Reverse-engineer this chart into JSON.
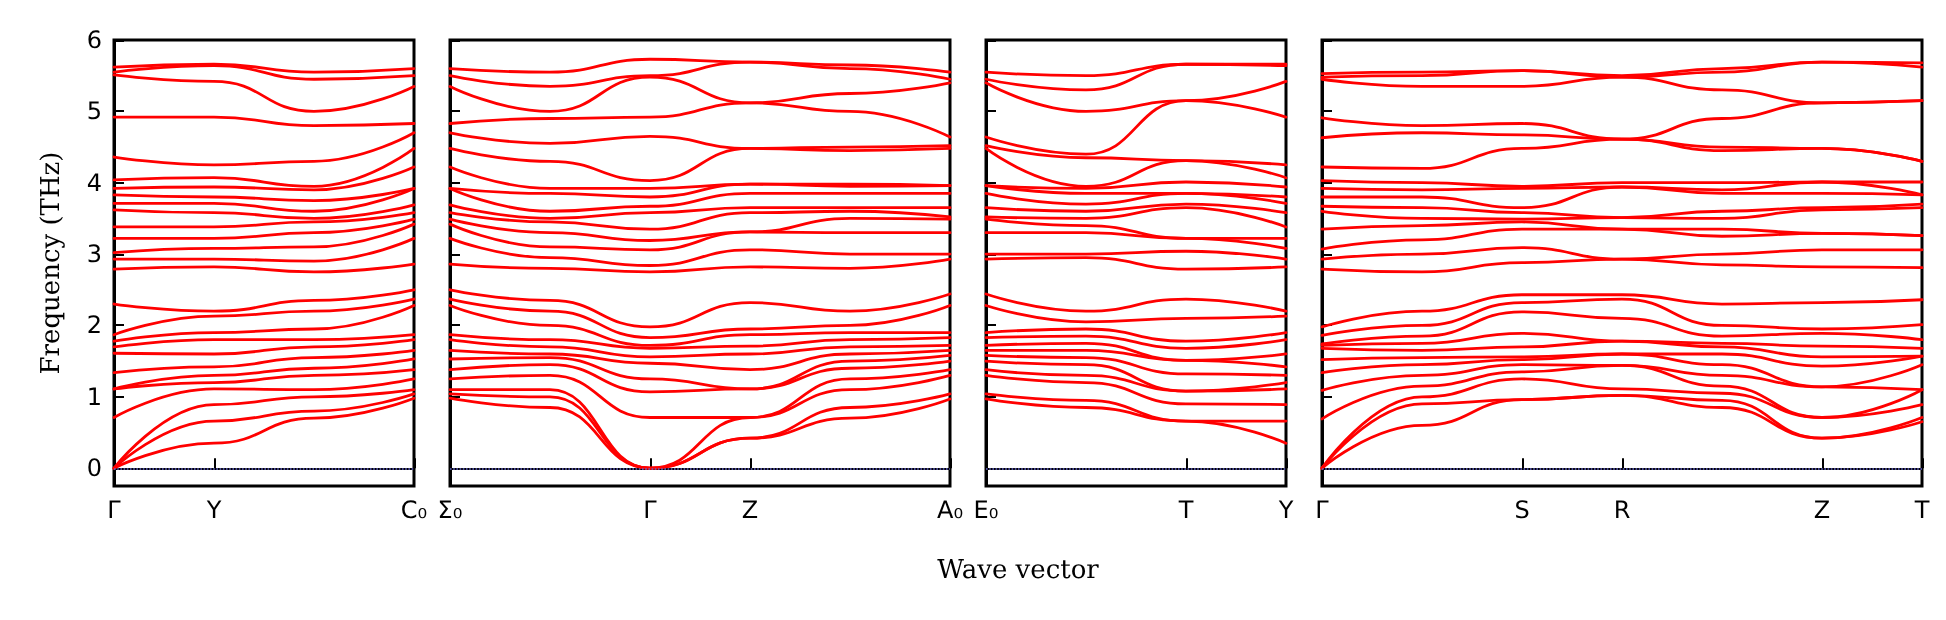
{
  "chart_data": [
    {
      "type": "line",
      "ylabel": "Frequency (THz)",
      "categories": [
        "Γ",
        "Y",
        null,
        "C₀"
      ],
      "ylim": [
        -0.25,
        6
      ],
      "yticks": [
        0,
        1,
        2,
        3,
        4,
        5,
        6
      ],
      "grid": false,
      "marker": "none",
      "line_style": "solid",
      "ref_lines": [
        {
          "axis": "y",
          "value": 0,
          "color": "#6666cc",
          "line_style": "dotted"
        }
      ],
      "series": [
        {
          "color": "#ff0000",
          "values": [
            0,
            0.35,
            0.7,
            0.98
          ]
        },
        {
          "color": "#ff0000",
          "values": [
            0,
            0.66,
            0.8,
            1.04
          ]
        },
        {
          "color": "#ff0000",
          "values": [
            0,
            0.89,
            1.0,
            1.1
          ]
        },
        {
          "color": "#ff0000",
          "values": [
            0.71,
            1.11,
            1.1,
            1.25
          ]
        },
        {
          "color": "#ff0000",
          "values": [
            1.11,
            1.2,
            1.3,
            1.38
          ]
        },
        {
          "color": "#ff0000",
          "values": [
            1.11,
            1.3,
            1.4,
            1.53
          ]
        },
        {
          "color": "#ff0000",
          "values": [
            1.34,
            1.42,
            1.55,
            1.65
          ]
        },
        {
          "color": "#ff0000",
          "values": [
            1.61,
            1.6,
            1.7,
            1.8
          ]
        },
        {
          "color": "#ff0000",
          "values": [
            1.7,
            1.8,
            1.8,
            1.87
          ]
        },
        {
          "color": "#ff0000",
          "values": [
            1.78,
            1.9,
            1.95,
            2.28
          ]
        },
        {
          "color": "#ff0000",
          "values": [
            1.87,
            2.13,
            2.2,
            2.37
          ]
        },
        {
          "color": "#ff0000",
          "values": [
            2.3,
            2.2,
            2.35,
            2.5
          ]
        },
        {
          "color": "#ff0000",
          "values": [
            2.79,
            2.82,
            2.75,
            2.86
          ]
        },
        {
          "color": "#ff0000",
          "values": [
            2.93,
            2.93,
            2.9,
            3.22
          ]
        },
        {
          "color": "#ff0000",
          "values": [
            3.02,
            3.08,
            3.1,
            3.42
          ]
        },
        {
          "color": "#ff0000",
          "values": [
            3.22,
            3.22,
            3.3,
            3.49
          ]
        },
        {
          "color": "#ff0000",
          "values": [
            3.38,
            3.38,
            3.45,
            3.58
          ]
        },
        {
          "color": "#ff0000",
          "values": [
            3.62,
            3.58,
            3.5,
            3.69
          ]
        },
        {
          "color": "#ff0000",
          "values": [
            3.71,
            3.71,
            3.6,
            3.92
          ]
        },
        {
          "color": "#ff0000",
          "values": [
            3.83,
            3.8,
            3.75,
            3.92
          ]
        },
        {
          "color": "#ff0000",
          "values": [
            3.92,
            3.94,
            3.9,
            4.22
          ]
        },
        {
          "color": "#ff0000",
          "values": [
            4.04,
            4.07,
            3.95,
            4.48
          ]
        },
        {
          "color": "#ff0000",
          "values": [
            4.36,
            4.25,
            4.3,
            4.7
          ]
        },
        {
          "color": "#ff0000",
          "values": [
            4.92,
            4.92,
            4.8,
            4.83
          ]
        },
        {
          "color": "#ff0000",
          "values": [
            5.51,
            5.42,
            5.0,
            5.35
          ]
        },
        {
          "color": "#ff0000",
          "values": [
            5.55,
            5.64,
            5.45,
            5.5
          ]
        },
        {
          "color": "#ff0000",
          "values": [
            5.62,
            5.66,
            5.55,
            5.6
          ]
        }
      ]
    },
    {
      "type": "line",
      "xlabel": "Wave vector",
      "tick_labels": "x",
      "categories": [
        "Σ₀",
        null,
        "Γ",
        "Z",
        null,
        "A₀"
      ],
      "ylim": [
        -0.25,
        6
      ],
      "yticks": [
        0,
        1,
        2,
        3,
        4,
        5,
        6
      ],
      "grid": false,
      "marker": "none",
      "line_style": "solid",
      "ref_lines": [
        {
          "axis": "y",
          "value": 0,
          "color": "#6666cc",
          "line_style": "dotted"
        }
      ],
      "series": [
        {
          "color": "#ff0000",
          "values": [
            0.98,
            0.85,
            0,
            0.42,
            0.7,
            0.97
          ]
        },
        {
          "color": "#ff0000",
          "values": [
            1.04,
            1.0,
            0,
            0.42,
            0.85,
            1.04
          ]
        },
        {
          "color": "#ff0000",
          "values": [
            1.1,
            1.1,
            0,
            0.71,
            1.1,
            1.3
          ]
        },
        {
          "color": "#ff0000",
          "values": [
            1.25,
            1.3,
            0.71,
            0.71,
            1.25,
            1.38
          ]
        },
        {
          "color": "#ff0000",
          "values": [
            1.38,
            1.45,
            1.07,
            1.11,
            1.4,
            1.5
          ]
        },
        {
          "color": "#ff0000",
          "values": [
            1.53,
            1.55,
            1.25,
            1.11,
            1.5,
            1.58
          ]
        },
        {
          "color": "#ff0000",
          "values": [
            1.65,
            1.6,
            1.47,
            1.38,
            1.6,
            1.65
          ]
        },
        {
          "color": "#ff0000",
          "values": [
            1.8,
            1.7,
            1.56,
            1.6,
            1.7,
            1.72
          ]
        },
        {
          "color": "#ff0000",
          "values": [
            1.87,
            1.8,
            1.68,
            1.71,
            1.8,
            1.83
          ]
        },
        {
          "color": "#ff0000",
          "values": [
            2.28,
            2.0,
            1.72,
            1.87,
            1.9,
            1.9
          ]
        },
        {
          "color": "#ff0000",
          "values": [
            2.37,
            2.2,
            1.83,
            1.95,
            2.0,
            2.28
          ]
        },
        {
          "color": "#ff0000",
          "values": [
            2.5,
            2.35,
            1.98,
            2.32,
            2.2,
            2.44
          ]
        },
        {
          "color": "#ff0000",
          "values": [
            2.86,
            2.8,
            2.75,
            2.82,
            2.8,
            2.93
          ]
        },
        {
          "color": "#ff0000",
          "values": [
            3.22,
            2.95,
            2.84,
            3.06,
            3.0,
            3.0
          ]
        },
        {
          "color": "#ff0000",
          "values": [
            3.42,
            3.1,
            3.06,
            3.31,
            3.3,
            3.3
          ]
        },
        {
          "color": "#ff0000",
          "values": [
            3.49,
            3.3,
            3.19,
            3.31,
            3.5,
            3.49
          ]
        },
        {
          "color": "#ff0000",
          "values": [
            3.58,
            3.45,
            3.35,
            3.58,
            3.6,
            3.52
          ]
        },
        {
          "color": "#ff0000",
          "values": [
            3.69,
            3.5,
            3.58,
            3.65,
            3.65,
            3.65
          ]
        },
        {
          "color": "#ff0000",
          "values": [
            3.92,
            3.6,
            3.67,
            3.85,
            3.85,
            3.85
          ]
        },
        {
          "color": "#ff0000",
          "values": [
            3.92,
            3.85,
            3.8,
            3.98,
            3.95,
            3.96
          ]
        },
        {
          "color": "#ff0000",
          "values": [
            4.22,
            3.92,
            3.92,
            3.98,
            3.98,
            3.96
          ]
        },
        {
          "color": "#ff0000",
          "values": [
            4.48,
            4.3,
            4.03,
            4.48,
            4.45,
            4.48
          ]
        },
        {
          "color": "#ff0000",
          "values": [
            4.7,
            4.55,
            4.65,
            4.48,
            4.5,
            4.52
          ]
        },
        {
          "color": "#ff0000",
          "values": [
            4.83,
            4.9,
            4.92,
            5.12,
            5.0,
            4.64
          ]
        },
        {
          "color": "#ff0000",
          "values": [
            5.35,
            5.0,
            5.48,
            5.12,
            5.25,
            5.4
          ]
        },
        {
          "color": "#ff0000",
          "values": [
            5.5,
            5.35,
            5.5,
            5.69,
            5.6,
            5.45
          ]
        },
        {
          "color": "#ff0000",
          "values": [
            5.6,
            5.55,
            5.73,
            5.69,
            5.65,
            5.55
          ]
        }
      ]
    },
    {
      "type": "line",
      "tick_labels": "x",
      "categories": [
        "E₀",
        null,
        "T",
        "Y"
      ],
      "ylim": [
        -0.25,
        6
      ],
      "yticks": [
        0,
        1,
        2,
        3,
        4,
        5,
        6
      ],
      "grid": false,
      "marker": "none",
      "line_style": "solid",
      "ref_lines": [
        {
          "axis": "y",
          "value": 0,
          "color": "#6666cc",
          "line_style": "dotted"
        }
      ],
      "series": [
        {
          "color": "#ff0000",
          "values": [
            0.97,
            0.85,
            0.66,
            0.35
          ]
        },
        {
          "color": "#ff0000",
          "values": [
            1.04,
            0.95,
            0.66,
            0.66
          ]
        },
        {
          "color": "#ff0000",
          "values": [
            1.3,
            1.2,
            0.9,
            0.89
          ]
        },
        {
          "color": "#ff0000",
          "values": [
            1.38,
            1.3,
            1.08,
            1.11
          ]
        },
        {
          "color": "#ff0000",
          "values": [
            1.5,
            1.45,
            1.08,
            1.2
          ]
        },
        {
          "color": "#ff0000",
          "values": [
            1.58,
            1.55,
            1.32,
            1.3
          ]
        },
        {
          "color": "#ff0000",
          "values": [
            1.65,
            1.65,
            1.51,
            1.42
          ]
        },
        {
          "color": "#ff0000",
          "values": [
            1.72,
            1.75,
            1.51,
            1.6
          ]
        },
        {
          "color": "#ff0000",
          "values": [
            1.83,
            1.85,
            1.68,
            1.8
          ]
        },
        {
          "color": "#ff0000",
          "values": [
            1.9,
            1.95,
            1.78,
            1.9
          ]
        },
        {
          "color": "#ff0000",
          "values": [
            2.28,
            2.05,
            2.1,
            2.13
          ]
        },
        {
          "color": "#ff0000",
          "values": [
            2.44,
            2.2,
            2.37,
            2.2
          ]
        },
        {
          "color": "#ff0000",
          "values": [
            2.93,
            2.95,
            2.79,
            2.82
          ]
        },
        {
          "color": "#ff0000",
          "values": [
            3.0,
            3.0,
            3.04,
            2.93
          ]
        },
        {
          "color": "#ff0000",
          "values": [
            3.3,
            3.3,
            3.22,
            3.08
          ]
        },
        {
          "color": "#ff0000",
          "values": [
            3.49,
            3.4,
            3.22,
            3.22
          ]
        },
        {
          "color": "#ff0000",
          "values": [
            3.52,
            3.5,
            3.65,
            3.38
          ]
        },
        {
          "color": "#ff0000",
          "values": [
            3.65,
            3.6,
            3.7,
            3.58
          ]
        },
        {
          "color": "#ff0000",
          "values": [
            3.85,
            3.7,
            3.85,
            3.71
          ]
        },
        {
          "color": "#ff0000",
          "values": [
            3.96,
            3.85,
            3.85,
            3.8
          ]
        },
        {
          "color": "#ff0000",
          "values": [
            3.96,
            3.92,
            4.01,
            3.94
          ]
        },
        {
          "color": "#ff0000",
          "values": [
            4.48,
            3.95,
            4.31,
            4.07
          ]
        },
        {
          "color": "#ff0000",
          "values": [
            4.52,
            4.35,
            4.31,
            4.25
          ]
        },
        {
          "color": "#ff0000",
          "values": [
            4.64,
            4.4,
            5.15,
            4.92
          ]
        },
        {
          "color": "#ff0000",
          "values": [
            5.4,
            5.0,
            5.15,
            5.42
          ]
        },
        {
          "color": "#ff0000",
          "values": [
            5.45,
            5.3,
            5.66,
            5.64
          ]
        },
        {
          "color": "#ff0000",
          "values": [
            5.55,
            5.5,
            5.66,
            5.66
          ]
        }
      ]
    },
    {
      "type": "line",
      "tick_labels": "x",
      "categories": [
        "Γ",
        null,
        "S",
        "R",
        null,
        "Z",
        "T"
      ],
      "ylim": [
        -0.25,
        6
      ],
      "yticks": [
        0,
        1,
        2,
        3,
        4,
        5,
        6
      ],
      "grid": false,
      "marker": "none",
      "line_style": "solid",
      "ref_lines": [
        {
          "axis": "y",
          "value": 0,
          "color": "#6666cc",
          "line_style": "dotted"
        }
      ],
      "series": [
        {
          "color": "#ff0000",
          "values": [
            0,
            0.6,
            0.96,
            1.02,
            0.85,
            0.42,
            0.65
          ]
        },
        {
          "color": "#ff0000",
          "values": [
            0,
            0.9,
            0.96,
            1.02,
            0.95,
            0.42,
            0.71
          ]
        },
        {
          "color": "#ff0000",
          "values": [
            0,
            1.0,
            1.25,
            1.11,
            1.05,
            0.71,
            0.89
          ]
        },
        {
          "color": "#ff0000",
          "values": [
            0.69,
            1.15,
            1.35,
            1.44,
            1.15,
            0.71,
            1.1
          ]
        },
        {
          "color": "#ff0000",
          "values": [
            1.09,
            1.3,
            1.45,
            1.44,
            1.3,
            1.14,
            1.1
          ]
        },
        {
          "color": "#ff0000",
          "values": [
            1.34,
            1.45,
            1.52,
            1.6,
            1.45,
            1.14,
            1.45
          ]
        },
        {
          "color": "#ff0000",
          "values": [
            1.52,
            1.55,
            1.56,
            1.6,
            1.6,
            1.43,
            1.57
          ]
        },
        {
          "color": "#ff0000",
          "values": [
            1.68,
            1.65,
            1.7,
            1.78,
            1.7,
            1.56,
            1.57
          ]
        },
        {
          "color": "#ff0000",
          "values": [
            1.72,
            1.75,
            1.89,
            1.78,
            1.75,
            1.71,
            1.68
          ]
        },
        {
          "color": "#ff0000",
          "values": [
            1.74,
            1.85,
            2.19,
            2.1,
            1.85,
            1.89,
            1.8
          ]
        },
        {
          "color": "#ff0000",
          "values": [
            1.86,
            2.0,
            2.32,
            2.37,
            2.0,
            1.95,
            2.01
          ]
        },
        {
          "color": "#ff0000",
          "values": [
            1.98,
            2.2,
            2.43,
            2.43,
            2.3,
            2.32,
            2.36
          ]
        },
        {
          "color": "#ff0000",
          "values": [
            2.79,
            2.75,
            2.88,
            2.93,
            2.85,
            2.82,
            2.81
          ]
        },
        {
          "color": "#ff0000",
          "values": [
            2.93,
            3.0,
            3.09,
            2.93,
            3.0,
            3.06,
            3.06
          ]
        },
        {
          "color": "#ff0000",
          "values": [
            3.07,
            3.2,
            3.35,
            3.35,
            3.25,
            3.29,
            3.26
          ]
        },
        {
          "color": "#ff0000",
          "values": [
            3.35,
            3.4,
            3.45,
            3.35,
            3.35,
            3.29,
            3.26
          ]
        },
        {
          "color": "#ff0000",
          "values": [
            3.6,
            3.5,
            3.49,
            3.51,
            3.5,
            3.62,
            3.65
          ]
        },
        {
          "color": "#ff0000",
          "values": [
            3.67,
            3.65,
            3.58,
            3.51,
            3.6,
            3.65,
            3.7
          ]
        },
        {
          "color": "#ff0000",
          "values": [
            3.8,
            3.8,
            3.65,
            3.94,
            3.85,
            3.85,
            3.83
          ]
        },
        {
          "color": "#ff0000",
          "values": [
            3.92,
            3.9,
            3.92,
            3.94,
            3.9,
            4.01,
            3.83
          ]
        },
        {
          "color": "#ff0000",
          "values": [
            4.03,
            4.0,
            3.95,
            4.0,
            4.0,
            4.01,
            4.01
          ]
        },
        {
          "color": "#ff0000",
          "values": [
            4.22,
            4.2,
            4.48,
            4.61,
            4.45,
            4.48,
            4.3
          ]
        },
        {
          "color": "#ff0000",
          "values": [
            4.63,
            4.7,
            4.67,
            4.61,
            4.5,
            4.48,
            4.3
          ]
        },
        {
          "color": "#ff0000",
          "values": [
            4.91,
            4.8,
            4.83,
            4.61,
            4.9,
            5.12,
            5.15
          ]
        },
        {
          "color": "#ff0000",
          "values": [
            5.45,
            5.35,
            5.35,
            5.48,
            5.3,
            5.12,
            5.15
          ]
        },
        {
          "color": "#ff0000",
          "values": [
            5.48,
            5.5,
            5.57,
            5.48,
            5.55,
            5.69,
            5.62
          ]
        },
        {
          "color": "#ff0000",
          "values": [
            5.53,
            5.55,
            5.57,
            5.5,
            5.6,
            5.69,
            5.68
          ]
        }
      ]
    }
  ]
}
